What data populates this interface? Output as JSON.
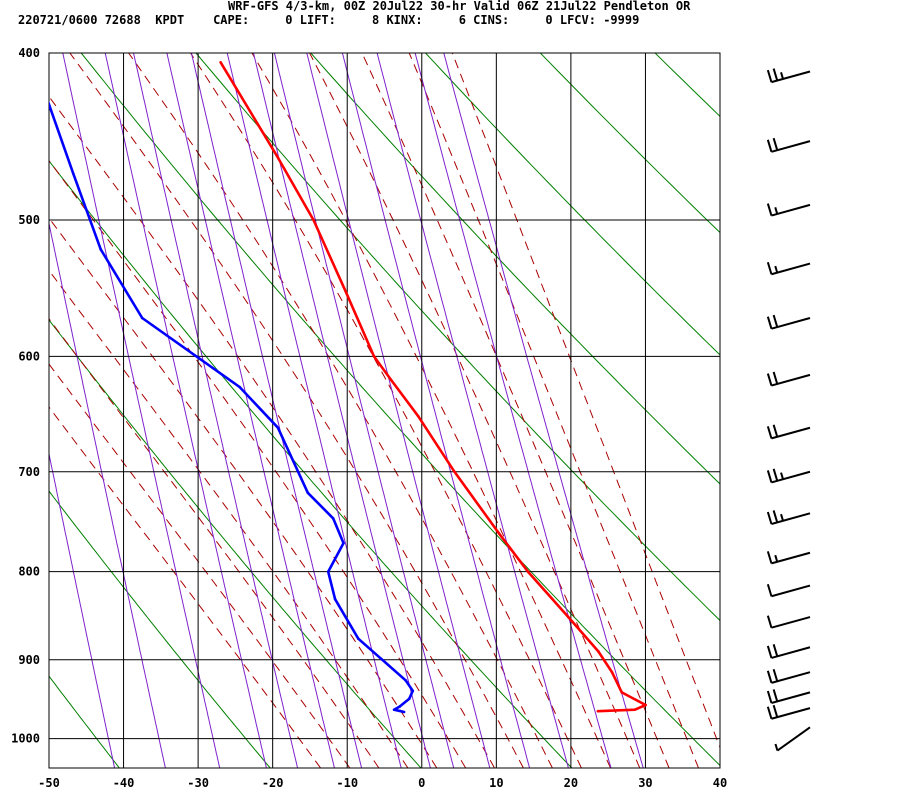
{
  "header": {
    "line1": "WRF-GFS 4/3-km, 00Z 20Jul22 30-hr Valid 06Z 21Jul22 Pendleton OR",
    "line2": "220721/0600 72688  KPDT    CAPE:     0 LIFT:     8 KINX:     6 CINS:     0 LFCV: -9999"
  },
  "chart_data": {
    "type": "line",
    "kind": "skew-T log-P sounding",
    "x_axis": {
      "unit": "degC",
      "range": [
        -50,
        40
      ],
      "ticks": [
        -50,
        -40,
        -30,
        -20,
        -10,
        0,
        10,
        20,
        30,
        40
      ]
    },
    "y_axis": {
      "unit": "hPa",
      "scale": "log",
      "range": [
        1040,
        400
      ],
      "ticks": [
        400,
        500,
        600,
        700,
        800,
        900,
        1000
      ]
    },
    "grid": true,
    "stats": {
      "CAPE": 0,
      "LIFT": 8,
      "KINX": 6,
      "CINS": 0,
      "LFCV": -9999
    },
    "series": [
      {
        "role": "temperature",
        "color": "#ff0000",
        "points": [
          {
            "p": 964,
            "t": 24.5
          },
          {
            "p": 962,
            "t": 29.5
          },
          {
            "p": 956,
            "t": 31.0
          },
          {
            "p": 940,
            "t": 28.0
          },
          {
            "p": 915,
            "t": 27.0
          },
          {
            "p": 890,
            "t": 25.5
          },
          {
            "p": 850,
            "t": 22.0
          },
          {
            "p": 800,
            "t": 17.3
          },
          {
            "p": 760,
            "t": 14.0
          },
          {
            "p": 700,
            "t": 9.0
          },
          {
            "p": 650,
            "t": 5.0
          },
          {
            "p": 620,
            "t": 2.0
          },
          {
            "p": 600,
            "t": 0.0
          },
          {
            "p": 550,
            "t": -2.8
          },
          {
            "p": 500,
            "t": -6.0
          },
          {
            "p": 460,
            "t": -9.8
          },
          {
            "p": 405,
            "t": -16.0
          }
        ]
      },
      {
        "role": "dewpoint",
        "color": "#0000ff",
        "points": [
          {
            "p": 965,
            "t": -1.5
          },
          {
            "p": 962,
            "t": -2.8
          },
          {
            "p": 958,
            "t": -2.0
          },
          {
            "p": 948,
            "t": -0.6
          },
          {
            "p": 938,
            "t": 0.0
          },
          {
            "p": 925,
            "t": -0.8
          },
          {
            "p": 875,
            "t": -6.5
          },
          {
            "p": 830,
            "t": -9.0
          },
          {
            "p": 800,
            "t": -9.5
          },
          {
            "p": 770,
            "t": -7.0
          },
          {
            "p": 745,
            "t": -8.0
          },
          {
            "p": 720,
            "t": -11.0
          },
          {
            "p": 660,
            "t": -14.0
          },
          {
            "p": 625,
            "t": -18.5
          },
          {
            "p": 570,
            "t": -30.5
          },
          {
            "p": 520,
            "t": -35.0
          },
          {
            "p": 470,
            "t": -37.5
          },
          {
            "p": 405,
            "t": -41.0
          }
        ]
      }
    ],
    "wind_barbs": [
      {
        "p": 410,
        "full_barbs": 2,
        "half_barbs": 1
      },
      {
        "p": 450,
        "full_barbs": 2,
        "half_barbs": 0
      },
      {
        "p": 490,
        "full_barbs": 1,
        "half_barbs": 1
      },
      {
        "p": 530,
        "full_barbs": 1,
        "half_barbs": 1
      },
      {
        "p": 570,
        "full_barbs": 2,
        "half_barbs": 0
      },
      {
        "p": 615,
        "full_barbs": 2,
        "half_barbs": 0
      },
      {
        "p": 660,
        "full_barbs": 2,
        "half_barbs": 0
      },
      {
        "p": 700,
        "full_barbs": 2,
        "half_barbs": 1
      },
      {
        "p": 740,
        "full_barbs": 2,
        "half_barbs": 1
      },
      {
        "p": 780,
        "full_barbs": 1,
        "half_barbs": 1
      },
      {
        "p": 815,
        "full_barbs": 1,
        "half_barbs": 0
      },
      {
        "p": 850,
        "full_barbs": 1,
        "half_barbs": 0
      },
      {
        "p": 885,
        "full_barbs": 2,
        "half_barbs": 0
      },
      {
        "p": 915,
        "full_barbs": 2,
        "half_barbs": 0
      },
      {
        "p": 940,
        "full_barbs": 2,
        "half_barbs": 0
      },
      {
        "p": 960,
        "full_barbs": 2,
        "half_barbs": 0
      },
      {
        "p": 985,
        "full_barbs": 0,
        "half_barbs": 1
      }
    ],
    "colors": {
      "temperature": "#ff0000",
      "dewpoint": "#0000ff",
      "dry_adiabats": "#008000",
      "moist_adiabats": "#aa0000",
      "mixing_ratio_lines": "#7f22cc",
      "grid": "#000000"
    }
  }
}
